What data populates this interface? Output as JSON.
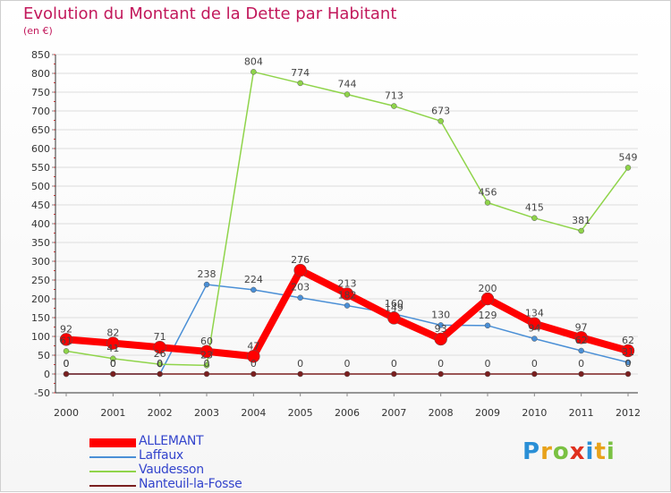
{
  "title": "Evolution du Montant de la Dette par Habitant",
  "subtitle": "(en €)",
  "logo": "Proxiti",
  "colors": {
    "title": "#c2185b",
    "grid": "#dddddd",
    "axis": "#333333"
  },
  "chart_data": {
    "type": "line",
    "title": "Evolution du Montant de la Dette par Habitant",
    "subtitle": "(en €)",
    "x": [
      "2000",
      "2001",
      "2002",
      "2003",
      "2004",
      "2005",
      "2006",
      "2007",
      "2008",
      "2009",
      "2010",
      "2011",
      "2012"
    ],
    "ylim": [
      -50,
      850
    ],
    "yticks": [
      -50,
      0,
      50,
      100,
      150,
      200,
      250,
      300,
      350,
      400,
      450,
      500,
      550,
      600,
      650,
      700,
      750,
      800,
      850
    ],
    "grid": "horizontal",
    "legend": "bottom-left",
    "series": [
      {
        "name": "Laffaux",
        "color": "#4a8fd6",
        "width": 1.5,
        "marker": 3,
        "values": [
          0,
          0,
          0,
          238,
          224,
          203,
          182,
          160,
          130,
          129,
          94,
          62,
          31
        ],
        "labels": [
          "0",
          "0",
          "0",
          "238",
          "224",
          "203",
          "182",
          "160",
          "130",
          "129",
          "94",
          "62",
          "31"
        ]
      },
      {
        "name": "Vaudesson",
        "color": "#8fd44a",
        "width": 1.5,
        "marker": 3,
        "values": [
          61,
          41,
          26,
          23,
          804,
          774,
          744,
          713,
          673,
          456,
          415,
          381,
          549
        ],
        "labels": [
          "61",
          "41",
          "26",
          "23",
          "804",
          "774",
          "744",
          "713",
          "673",
          "456",
          "415",
          "381",
          "549"
        ]
      },
      {
        "name": "Nanteuil-la-Fosse",
        "color": "#7a1f1f",
        "width": 1.5,
        "marker": 3,
        "values": [
          0,
          0,
          0,
          0,
          0,
          0,
          0,
          0,
          0,
          0,
          0,
          0,
          0
        ],
        "labels": [
          "0",
          "0",
          "0",
          "0",
          "0",
          "0",
          "0",
          "0",
          "0",
          "0",
          "0",
          "0",
          "0"
        ]
      },
      {
        "name": "ALLEMANT",
        "color": "#ff0000",
        "width": 8,
        "marker": 7,
        "values": [
          92,
          82,
          71,
          60,
          47,
          276,
          213,
          149,
          93,
          200,
          134,
          97,
          62
        ],
        "labels": [
          "92",
          "82",
          "71",
          "60",
          "47",
          "276",
          "213",
          "149",
          "93",
          "200",
          "134",
          "97",
          "62"
        ]
      }
    ],
    "legend_order": [
      "ALLEMANT",
      "Laffaux",
      "Vaudesson",
      "Nanteuil-la-Fosse"
    ]
  }
}
